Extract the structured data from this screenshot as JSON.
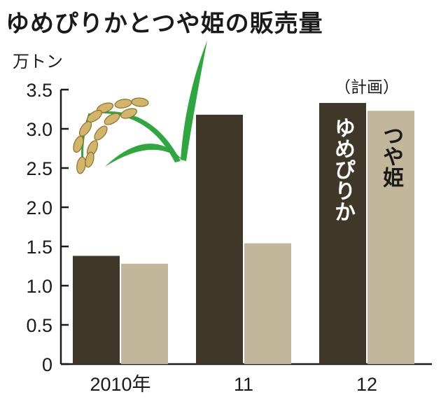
{
  "title": "ゆめぴりかとつや姫の販売量",
  "chart_data": {
    "type": "bar",
    "title": "ゆめぴりかとつや姫の販売量",
    "ylabel": "万トン",
    "xlabel": "",
    "ylim": [
      0,
      3.5
    ],
    "yticks": [
      "0",
      "0.5",
      "1.0",
      "1.5",
      "2.0",
      "2.5",
      "3.0",
      "3.5"
    ],
    "categories": [
      "2010年",
      "11",
      "12"
    ],
    "series": [
      {
        "name": "ゆめぴりか",
        "color": "#3f3728",
        "values": [
          1.38,
          3.18,
          3.33
        ]
      },
      {
        "name": "つや姫",
        "color": "#c3b79b",
        "values": [
          1.28,
          1.54,
          3.23
        ]
      }
    ],
    "annotation": "（計画）",
    "grid": false,
    "legend": "in-bar labels"
  }
}
